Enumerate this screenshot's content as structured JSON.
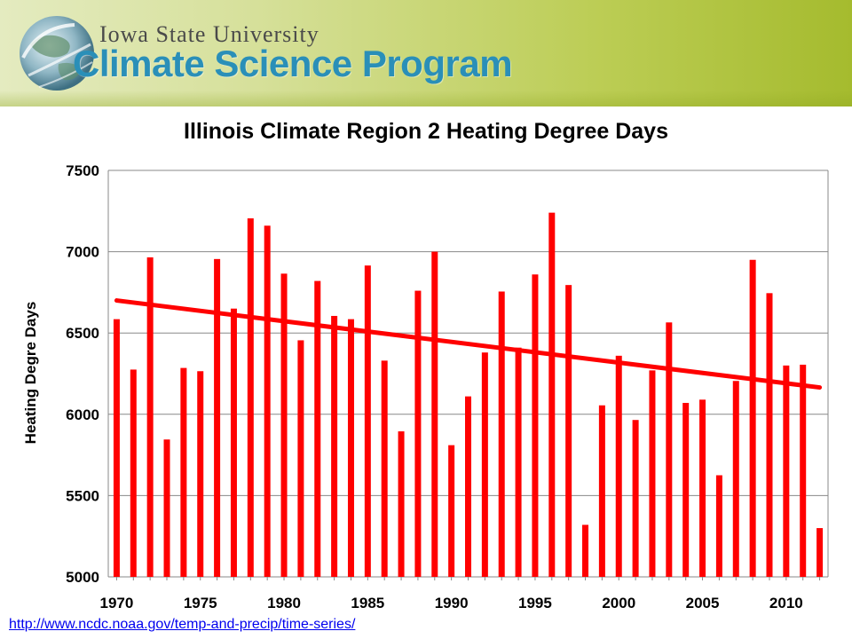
{
  "header": {
    "university": "Iowa State University",
    "program": "Climate Science Program",
    "colors": {
      "program_text": "#2a8fb8",
      "banner": "#bccd55"
    }
  },
  "source_link": "http://www.ncdc.noaa.gov/temp-and-precip/time-series/",
  "chart_data": {
    "type": "bar",
    "title": "Illinois Climate Region 2 Heating Degree Days",
    "xlabel": "",
    "ylabel": "Heating Degre Days",
    "ylim": [
      5000,
      7500
    ],
    "yticks": [
      5000,
      5500,
      6000,
      6500,
      7000,
      7500
    ],
    "xticks": [
      "1970",
      "1975",
      "1980",
      "1985",
      "1990",
      "1995",
      "2000",
      "2005",
      "2010"
    ],
    "grid": true,
    "bar_color": "#ff0000",
    "x": [
      1970,
      1971,
      1972,
      1973,
      1974,
      1975,
      1976,
      1977,
      1978,
      1979,
      1980,
      1981,
      1982,
      1983,
      1984,
      1985,
      1986,
      1987,
      1988,
      1989,
      1990,
      1991,
      1992,
      1993,
      1994,
      1995,
      1996,
      1997,
      1998,
      1999,
      2000,
      2001,
      2002,
      2003,
      2004,
      2005,
      2006,
      2007,
      2008,
      2009,
      2010,
      2011,
      2012
    ],
    "values": [
      6585,
      6275,
      6965,
      5845,
      6285,
      6265,
      6955,
      6650,
      7205,
      7160,
      6865,
      6455,
      6820,
      6605,
      6585,
      6915,
      6330,
      5895,
      6760,
      7000,
      5810,
      6110,
      6380,
      6755,
      6410,
      6860,
      7240,
      6795,
      5320,
      6055,
      6360,
      5965,
      6270,
      6565,
      6070,
      6090,
      5625,
      6205,
      6950,
      6745,
      6300,
      6305,
      5300
    ],
    "trend": {
      "start": [
        1970,
        6700
      ],
      "end": [
        2012,
        6165
      ],
      "color": "#ff0000"
    }
  }
}
